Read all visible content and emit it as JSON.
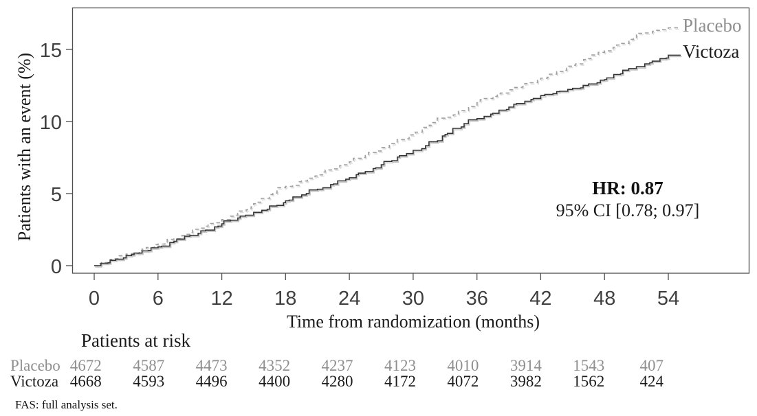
{
  "chart_data": {
    "type": "line",
    "subtype": "kaplan-meier-cumulative-incidence",
    "title": "",
    "xlabel": "Time from randomization (months)",
    "ylabel": "Patients with an event (%)",
    "x_ticks": [
      0,
      6,
      12,
      18,
      24,
      30,
      36,
      42,
      48,
      54
    ],
    "y_ticks": [
      0,
      5,
      10,
      15
    ],
    "xlim": [
      0,
      61.5
    ],
    "ylim": [
      -0.5,
      18
    ],
    "grid": "off",
    "legend_position": "end-of-curve-right-inside-plot",
    "x": [
      0,
      3,
      6,
      9,
      12,
      15,
      18,
      21,
      24,
      27,
      30,
      33,
      36,
      39,
      42,
      45,
      48,
      51,
      54
    ],
    "series": [
      {
        "name": "Placebo",
        "line_style": "dashed",
        "color": "#9f9f9f",
        "label_color": "#8f8f8f",
        "values": [
          0,
          0.8,
          1.5,
          2.3,
          3.2,
          4.3,
          5.5,
          6.3,
          7.2,
          8.2,
          9.2,
          10.3,
          11.3,
          12.2,
          13.0,
          13.9,
          14.9,
          16.0,
          16.5
        ]
      },
      {
        "name": "Victoza",
        "line_style": "solid",
        "color": "#333333",
        "label_color": "#1c1c1c",
        "values": [
          0,
          0.7,
          1.3,
          2.1,
          2.9,
          3.7,
          4.5,
          5.3,
          6.1,
          7.0,
          8.0,
          9.1,
          10.2,
          11.0,
          11.8,
          12.3,
          12.9,
          13.8,
          14.6
        ]
      }
    ],
    "annotation": {
      "line1": "HR: 0.87",
      "line2": "95% CI [0.78; 0.97]"
    }
  },
  "risk_table": {
    "header": "Patients at risk",
    "time_points": [
      0,
      6,
      12,
      18,
      24,
      30,
      36,
      42,
      48,
      54
    ],
    "rows": [
      {
        "label": "Placebo",
        "color": "#8f8f8f",
        "counts": [
          "4672",
          "4587",
          "4473",
          "4352",
          "4237",
          "4123",
          "4010",
          "3914",
          "1543",
          "407"
        ]
      },
      {
        "label": "Victoza",
        "color": "#1c1c1c",
        "counts": [
          "4668",
          "4593",
          "4496",
          "4400",
          "4280",
          "4172",
          "4072",
          "3982",
          "1562",
          "424"
        ]
      }
    ]
  },
  "footnote": "FAS: full analysis set."
}
